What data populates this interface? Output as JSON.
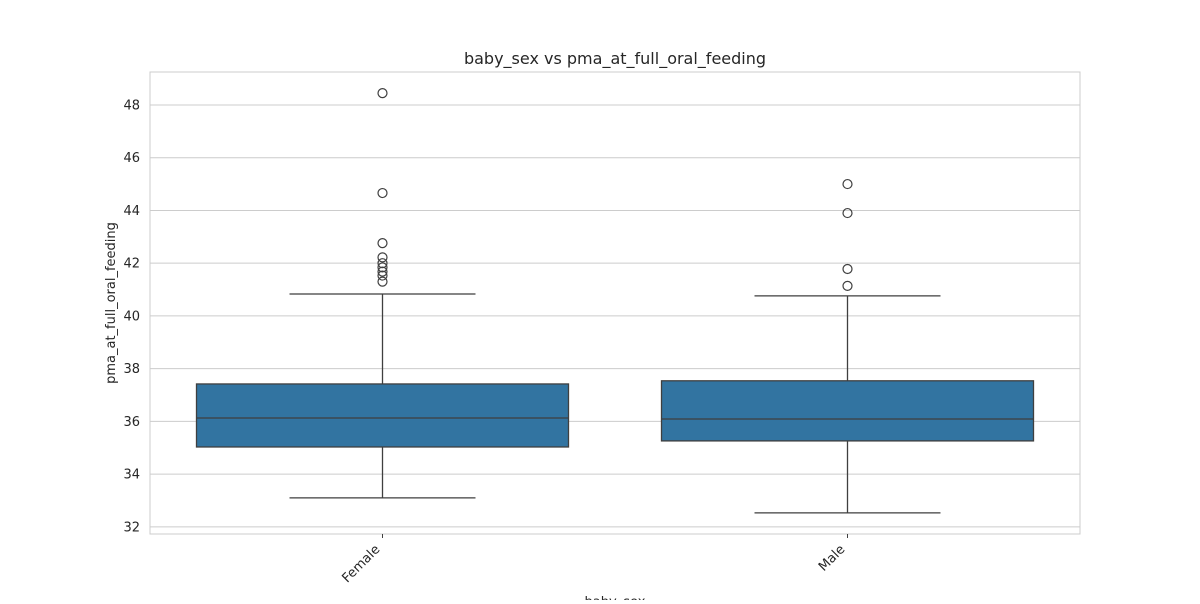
{
  "chart_data": {
    "type": "box",
    "title": "baby_sex vs pma_at_full_oral_feeding",
    "xlabel": "baby_sex",
    "ylabel": "pma_at_full_oral_feeding",
    "ylim": [
      31.73,
      49.25
    ],
    "yticks": [
      32,
      34,
      36,
      38,
      40,
      42,
      44,
      46,
      48
    ],
    "grid": true,
    "box_color": "#3274a1",
    "categories": [
      "Female",
      "Male"
    ],
    "boxes": [
      {
        "category": "Female",
        "whisker_low": 33.1,
        "q1": 35.03,
        "median": 36.13,
        "q3": 37.42,
        "whisker_high": 40.83,
        "outliers": [
          48.45,
          44.66,
          42.76,
          42.22,
          42.0,
          41.84,
          41.68,
          41.53,
          41.3
        ]
      },
      {
        "category": "Male",
        "whisker_low": 32.53,
        "q1": 35.26,
        "median": 36.09,
        "q3": 37.54,
        "whisker_high": 40.76,
        "outliers": [
          45.0,
          43.9,
          41.78,
          41.14
        ]
      }
    ]
  }
}
